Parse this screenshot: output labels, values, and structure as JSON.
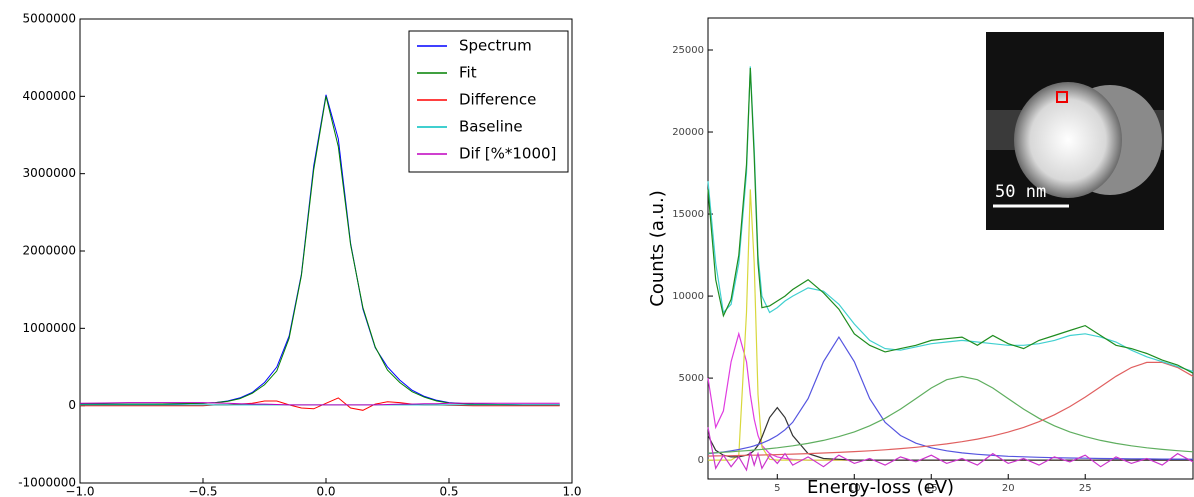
{
  "chart_data": [
    {
      "type": "line",
      "x": [
        -1.0,
        -0.9,
        -0.8,
        -0.7,
        -0.6,
        -0.5,
        -0.45,
        -0.4,
        -0.35,
        -0.3,
        -0.25,
        -0.2,
        -0.15,
        -0.1,
        -0.05,
        0,
        0.05,
        0.1,
        0.15,
        0.2,
        0.25,
        0.3,
        0.35,
        0.4,
        0.45,
        0.5,
        0.6,
        0.7,
        0.8,
        0.9,
        0.95
      ],
      "series": [
        {
          "name": "Spectrum",
          "color": "#0000ff",
          "values": [
            20000,
            20000,
            20000,
            20000,
            25000,
            30000,
            40000,
            60000,
            100000,
            170000,
            300000,
            500000,
            900000,
            1700000,
            3100000,
            4020000,
            3450000,
            2100000,
            1250000,
            750000,
            500000,
            330000,
            200000,
            120000,
            70000,
            40000,
            20000,
            15000,
            10000,
            10000,
            10000
          ]
        },
        {
          "name": "Fit",
          "color": "#008000",
          "values": [
            20000,
            20000,
            20000,
            20000,
            25000,
            30000,
            40000,
            55000,
            90000,
            160000,
            270000,
            450000,
            870000,
            1680000,
            3050000,
            4000000,
            3350000,
            2080000,
            1270000,
            760000,
            460000,
            300000,
            180000,
            110000,
            60000,
            35000,
            20000,
            15000,
            10000,
            10000,
            10000
          ]
        },
        {
          "name": "Difference",
          "color": "#ff0000",
          "values": [
            0,
            0,
            0,
            0,
            0,
            0,
            10000,
            10000,
            20000,
            30000,
            60000,
            60000,
            10000,
            -30000,
            -40000,
            30000,
            100000,
            -30000,
            -60000,
            20000,
            50000,
            40000,
            20000,
            10000,
            10000,
            5000,
            0,
            0,
            0,
            0,
            0
          ]
        },
        {
          "name": "Baseline",
          "color": "#00bfbf",
          "values": [
            10000,
            10000,
            10000,
            10000,
            10000,
            10000,
            10000,
            10000,
            10000,
            10000,
            10000,
            10000,
            10000,
            10000,
            10000,
            10000,
            10000,
            10000,
            10000,
            10000,
            10000,
            10000,
            10000,
            10000,
            10000,
            10000,
            10000,
            10000,
            10000,
            10000,
            10000
          ]
        },
        {
          "name": "Dif [%*1000]",
          "color": "#bf00bf",
          "values": [
            30000,
            35000,
            40000,
            40000,
            40000,
            40000,
            35000,
            30000,
            25000,
            20000,
            20000,
            15000,
            10000,
            10000,
            10000,
            10000,
            10000,
            10000,
            10000,
            10000,
            15000,
            20000,
            20000,
            25000,
            25000,
            30000,
            30000,
            30000,
            30000,
            30000,
            30000
          ]
        }
      ],
      "xlim": [
        -1,
        1
      ],
      "ylim": [
        -1000000,
        5000000
      ],
      "xticks": [
        {
          "value": -1,
          "label": "−1.0"
        },
        {
          "value": -0.5,
          "label": "−0.5"
        },
        {
          "value": 0,
          "label": "0.0"
        },
        {
          "value": 0.5,
          "label": "0.5"
        },
        {
          "value": 1,
          "label": "1.0"
        }
      ],
      "yticks": [
        -1000000,
        0,
        1000000,
        2000000,
        3000000,
        4000000,
        5000000
      ],
      "legend": "upper right",
      "grid": false
    },
    {
      "type": "line",
      "x_label": "Energy-loss (eV)",
      "y_label": "Counts (a.u.)",
      "scale_bar_label": "50 nm",
      "x": [
        0.5,
        1,
        1.5,
        2,
        2.5,
        3,
        3.25,
        3.5,
        3.75,
        4,
        4.5,
        5,
        5.5,
        6,
        7,
        8,
        9,
        10,
        11,
        12,
        13,
        14,
        15,
        16,
        17,
        18,
        19,
        20,
        21,
        22,
        23,
        24,
        25,
        26,
        27,
        28,
        29,
        30,
        31,
        32
      ],
      "series": [
        {
          "color": "#e03ce0",
          "values": [
            5000,
            2000,
            3000,
            6000,
            7700,
            6000,
            4000,
            2500,
            1500,
            900,
            400,
            200,
            100,
            50,
            0,
            0,
            0,
            0,
            0,
            0,
            0,
            0,
            0,
            0,
            0,
            0,
            0,
            0,
            0,
            0,
            0,
            0,
            0,
            0,
            0,
            0,
            0,
            0,
            0,
            0
          ]
        },
        {
          "color": "#d8d83c",
          "values": [
            0,
            0,
            0,
            0,
            300,
            9000,
            16500,
            12000,
            4000,
            800,
            50,
            0,
            0,
            0,
            0,
            0,
            0,
            0,
            0,
            0,
            0,
            0,
            0,
            0,
            0,
            0,
            0,
            0,
            0,
            0,
            0,
            0,
            0,
            0,
            0,
            0,
            0,
            0,
            0,
            0
          ]
        },
        {
          "color": "#333333",
          "values": [
            1500,
            600,
            300,
            200,
            200,
            300,
            400,
            600,
            900,
            1400,
            2600,
            3200,
            2600,
            1500,
            400,
            100,
            50,
            0,
            0,
            0,
            0,
            0,
            0,
            0,
            0,
            0,
            0,
            0,
            0,
            0,
            0,
            0,
            0,
            0,
            0,
            0,
            0,
            0,
            0,
            0
          ]
        },
        {
          "color": "#5555e0",
          "values": [
            394,
            441,
            498,
            566,
            649,
            750,
            809,
            876,
            951,
            1034,
            1238,
            1500,
            1847,
            2308,
            3750,
            6000,
            7500,
            6000,
            3750,
            2308,
            1500,
            1034,
            750,
            566,
            441,
            353,
            288,
            234,
            203,
            173,
            150,
            131,
            115,
            102,
            91,
            81,
            73,
            66,
            60,
            54
          ]
        },
        {
          "color": "#5fae5f",
          "values": [
            429,
            454,
            480,
            510,
            542,
            576,
            596,
            615,
            636,
            657,
            703,
            754,
            811,
            873,
            1020,
            1203,
            1433,
            1723,
            2090,
            2550,
            3110,
            3750,
            4397,
            4904,
            5100,
            4904,
            4397,
            3750,
            3110,
            2550,
            2090,
            1723,
            1433,
            1203,
            1020,
            873,
            754,
            657,
            576,
            510
          ]
        },
        {
          "color": "#e06060",
          "values": [
            246,
            255,
            263,
            273,
            282,
            293,
            298,
            303,
            309,
            315,
            327,
            340,
            353,
            367,
            398,
            434,
            474,
            519,
            571,
            631,
            701,
            782,
            877,
            990,
            1124,
            1285,
            1478,
            1709,
            1993,
            2341,
            2765,
            3261,
            3840,
            4478,
            5111,
            5647,
            5959,
            5959,
            5647,
            5111
          ]
        },
        {
          "color": "#cc33cc",
          "values": [
            2000,
            -500,
            300,
            -400,
            200,
            -600,
            500,
            -300,
            400,
            -500,
            300,
            -200,
            400,
            -300,
            200,
            -400,
            300,
            -200,
            100,
            -300,
            200,
            -100,
            300,
            -200,
            100,
            -300,
            400,
            -200,
            100,
            -300,
            200,
            -100,
            300,
            -400,
            200,
            -200,
            100,
            -300,
            400,
            -100
          ]
        },
        {
          "color": "#40d0d0",
          "values": [
            17000,
            12000,
            9000,
            9500,
            12000,
            17500,
            24000,
            19000,
            12500,
            10000,
            9000,
            9300,
            9700,
            10000,
            10500,
            10300,
            9500,
            8300,
            7300,
            6800,
            6700,
            6900,
            7100,
            7200,
            7300,
            7200,
            7100,
            7000,
            7000,
            7100,
            7300,
            7600,
            7700,
            7500,
            7200,
            6700,
            6300,
            6000,
            5700,
            5400
          ]
        },
        {
          "color": "#1e8c1e",
          "values": [
            16500,
            11000,
            8800,
            9800,
            12500,
            18000,
            23900,
            18500,
            12000,
            9300,
            9400,
            9700,
            10000,
            10400,
            11000,
            10200,
            9200,
            7700,
            7000,
            6600,
            6800,
            7000,
            7300,
            7400,
            7500,
            7000,
            7600,
            7100,
            6800,
            7300,
            7600,
            7900,
            8200,
            7600,
            7000,
            6800,
            6500,
            6100,
            5800,
            5300
          ]
        }
      ],
      "xlim": [
        0.5,
        32
      ],
      "ylim": [
        -1150,
        26950
      ],
      "xticks": [
        5,
        10,
        15,
        20,
        25
      ],
      "yticks": [
        0,
        5000,
        10000,
        15000,
        20000,
        25000
      ],
      "grid": false
    }
  ]
}
